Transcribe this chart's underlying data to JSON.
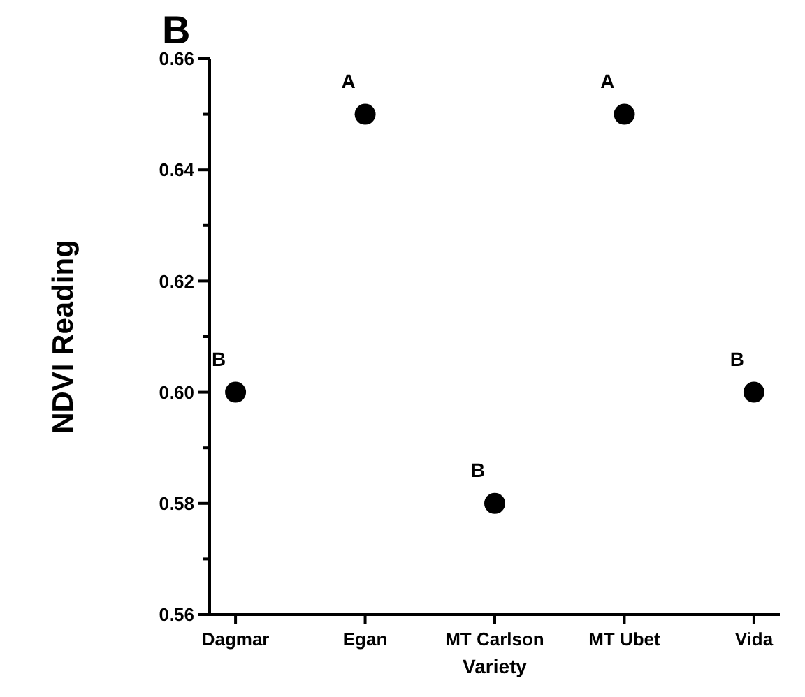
{
  "chart_data": {
    "type": "scatter",
    "title": "B",
    "xlabel": "Variety",
    "ylabel": "NDVI Reading",
    "categories": [
      "Dagmar",
      "Egan",
      "MT Carlson",
      "MT Ubet",
      "Vida"
    ],
    "values": [
      0.6,
      0.65,
      0.58,
      0.65,
      0.6
    ],
    "color": "#000000",
    "marker": "circle",
    "ylim": [
      0.56,
      0.66
    ],
    "yticks": [
      {
        "value": 0.56,
        "label": "0.56"
      },
      {
        "value": 0.57,
        "label": null
      },
      {
        "value": 0.58,
        "label": "0.58"
      },
      {
        "value": 0.59,
        "label": null
      },
      {
        "value": 0.6,
        "label": "0.60"
      },
      {
        "value": 0.61,
        "label": null
      },
      {
        "value": 0.62,
        "label": "0.62"
      },
      {
        "value": 0.63,
        "label": null
      },
      {
        "value": 0.64,
        "label": "0.64"
      },
      {
        "value": 0.65,
        "label": null
      },
      {
        "value": 0.66,
        "label": "0.66"
      }
    ],
    "grid": false,
    "annotations": [
      {
        "text": "B",
        "x": "Dagmar",
        "y": 0.6
      },
      {
        "text": "A",
        "x": "Egan",
        "y": 0.65
      },
      {
        "text": "B",
        "x": "MT Carlson",
        "y": 0.58
      },
      {
        "text": "A",
        "x": "MT Ubet",
        "y": 0.65
      },
      {
        "text": "B",
        "x": "Vida",
        "y": 0.6
      }
    ]
  }
}
